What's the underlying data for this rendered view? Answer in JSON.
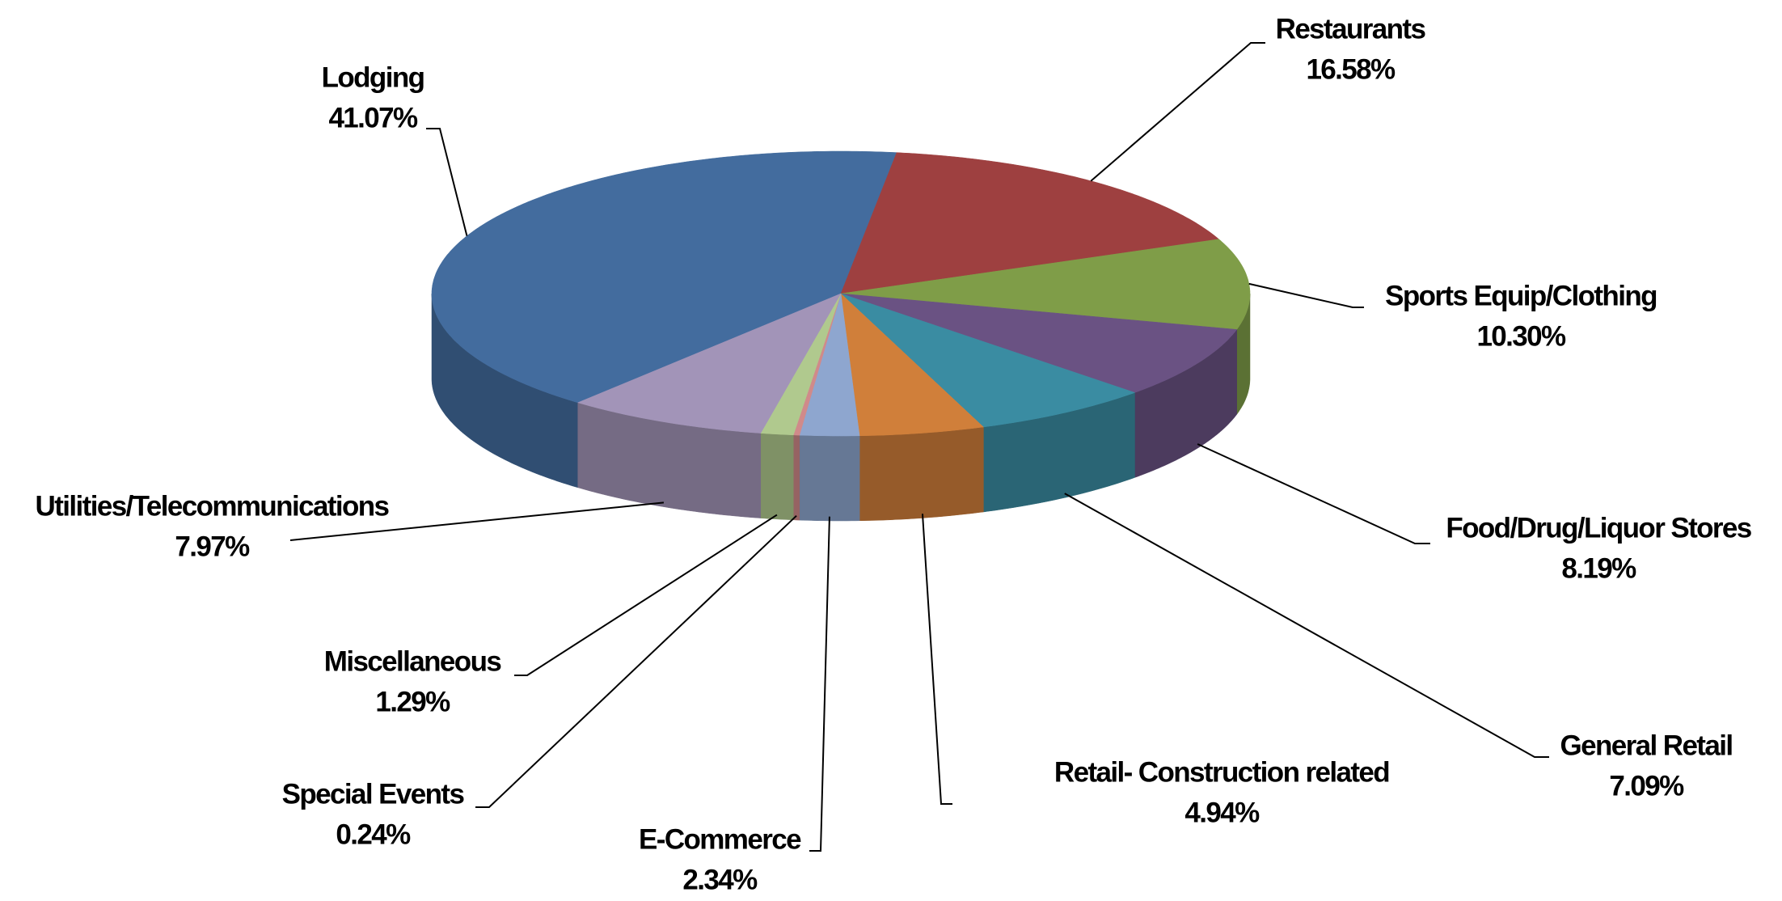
{
  "chart_data": {
    "type": "pie3d",
    "categories": [
      "Lodging",
      "Restaurants",
      "Sports Equip/Clothing",
      "Food/Drug/Liquor Stores",
      "General Retail",
      "Retail- Construction related",
      "E-Commerce",
      "Special Events",
      "Miscellaneous",
      "Utilities/Telecommunications"
    ],
    "values": [
      41.07,
      16.58,
      10.3,
      8.19,
      7.09,
      4.94,
      2.34,
      0.24,
      1.29,
      7.97
    ],
    "value_labels": [
      "41.07%",
      "16.58%",
      "10.30%",
      "8.19%",
      "7.09%",
      "4.94%",
      "2.34%",
      "0.24%",
      "1.29%",
      "7.97%"
    ],
    "colors": [
      "#436c9e",
      "#9e4040",
      "#7f9d48",
      "#6a5283",
      "#3a8ca2",
      "#d07f3a",
      "#8ea6cf",
      "#d08a8a",
      "#b0c98e",
      "#a294b8"
    ]
  }
}
